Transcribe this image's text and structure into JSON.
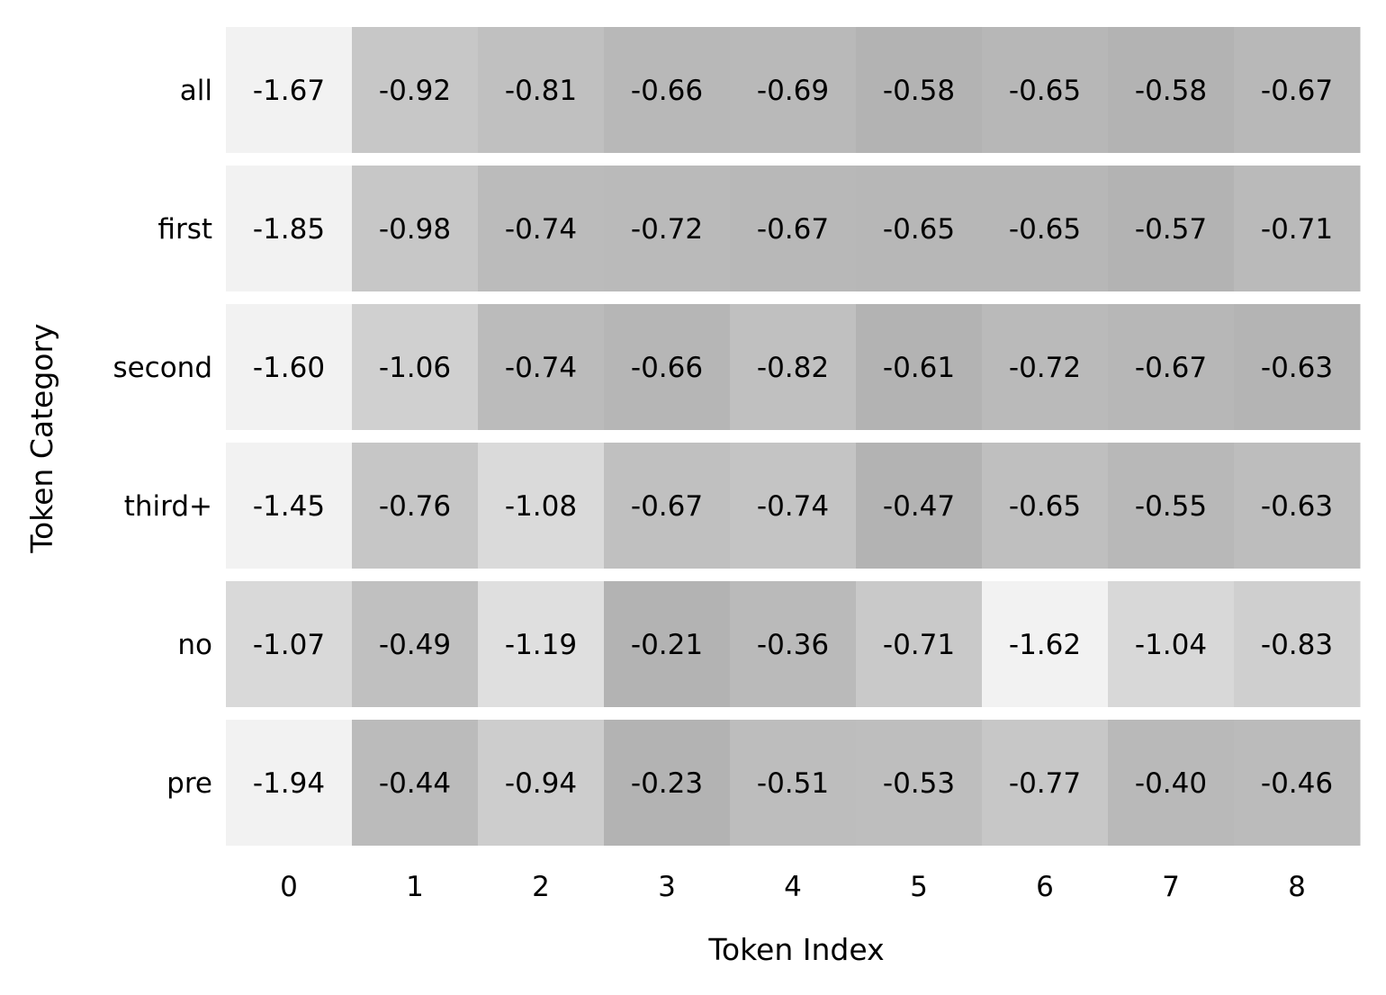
{
  "chart_data": {
    "type": "heatmap",
    "title": "",
    "xlabel": "Token Index",
    "ylabel": "Token Category",
    "x_categories": [
      "0",
      "1",
      "2",
      "3",
      "4",
      "5",
      "6",
      "7",
      "8"
    ],
    "y_categories": [
      "all",
      "first",
      "second",
      "third+",
      "no",
      "pre"
    ],
    "values": [
      [
        -1.67,
        -0.92,
        -0.81,
        -0.66,
        -0.69,
        -0.58,
        -0.65,
        -0.58,
        -0.67
      ],
      [
        -1.85,
        -0.98,
        -0.74,
        -0.72,
        -0.67,
        -0.65,
        -0.65,
        -0.57,
        -0.71
      ],
      [
        -1.6,
        -1.06,
        -0.74,
        -0.66,
        -0.82,
        -0.61,
        -0.72,
        -0.67,
        -0.63
      ],
      [
        -1.45,
        -0.76,
        -1.08,
        -0.67,
        -0.74,
        -0.47,
        -0.65,
        -0.55,
        -0.63
      ],
      [
        -1.07,
        -0.49,
        -1.19,
        -0.21,
        -0.36,
        -0.71,
        -1.62,
        -1.04,
        -0.83
      ],
      [
        -1.94,
        -0.44,
        -0.94,
        -0.23,
        -0.51,
        -0.53,
        -0.77,
        -0.4,
        -0.46
      ]
    ],
    "color_scale": "grayscale, normalized per row (lowest value lightest, highest darkest)",
    "colors": {
      "light": "#f2f2f2",
      "dark": "#b3b3b3"
    },
    "grid": false,
    "legend": "none"
  }
}
